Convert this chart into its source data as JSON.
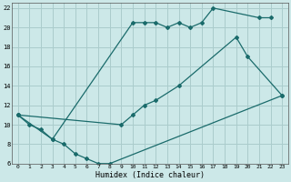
{
  "xlabel": "Humidex (Indice chaleur)",
  "bg_color": "#cce8e8",
  "grid_color": "#aacccc",
  "line_color": "#1a6b6b",
  "xlim": [
    -0.5,
    23.5
  ],
  "ylim": [
    6,
    22.5
  ],
  "xticks": [
    0,
    1,
    2,
    3,
    4,
    5,
    6,
    7,
    8,
    9,
    10,
    11,
    12,
    13,
    14,
    15,
    16,
    17,
    18,
    19,
    20,
    21,
    22,
    23
  ],
  "yticks": [
    6,
    8,
    10,
    12,
    14,
    16,
    18,
    20,
    22
  ],
  "series": [
    {
      "x": [
        0,
        1,
        2,
        3,
        10,
        11,
        12,
        13,
        14,
        15,
        16,
        17,
        21,
        22
      ],
      "y": [
        11,
        10,
        9.5,
        8.5,
        20.5,
        20.5,
        20.5,
        20,
        20.5,
        20,
        20.5,
        22,
        21,
        21
      ]
    },
    {
      "x": [
        0,
        9,
        10,
        11,
        12,
        14,
        19,
        20,
        23
      ],
      "y": [
        11,
        10,
        11,
        12,
        12.5,
        14,
        19,
        17,
        13
      ]
    },
    {
      "x": [
        0,
        3,
        4,
        5,
        6,
        7,
        8,
        23
      ],
      "y": [
        11,
        8.5,
        8,
        7,
        6.5,
        6,
        6,
        13
      ]
    }
  ]
}
